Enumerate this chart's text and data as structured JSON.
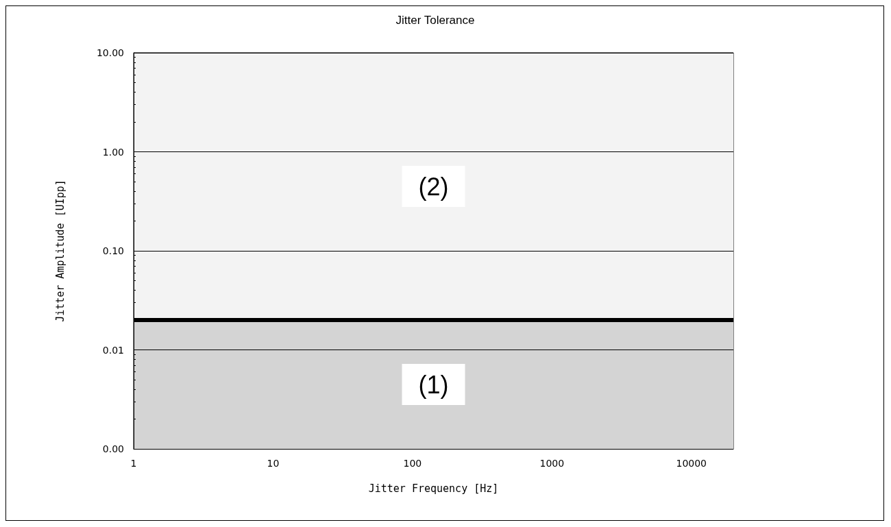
{
  "chart_data": {
    "type": "line",
    "title": "Jitter Tolerance",
    "xlabel": "Jitter Frequency [Hz]",
    "ylabel": "Jitter Amplitude [UIpp]",
    "x": [
      1,
      20000
    ],
    "series": [
      {
        "color": "#000000",
        "values": [
          0.02,
          0.02
        ]
      }
    ],
    "xlim": [
      1,
      20000
    ],
    "ylim": [
      0.001,
      10
    ],
    "xticks": [
      1,
      10,
      100,
      1000,
      10000
    ],
    "yticks": [
      {
        "value": 0.001,
        "label": "0.00"
      },
      {
        "value": 0.01,
        "label": "0.01"
      },
      {
        "value": 0.1,
        "label": "0.10"
      },
      {
        "value": 1,
        "label": "1.00"
      },
      {
        "value": 10,
        "label": "10.00"
      }
    ],
    "log": "xy",
    "grid": "y",
    "marker": "none",
    "line_style": "solid",
    "bands": [
      {
        "axis": "y",
        "from": 0.001,
        "to": 0.02,
        "label": "(1)",
        "color": "#d4d4d4"
      },
      {
        "axis": "y",
        "from": 0.02,
        "to": 10,
        "label": "(2)",
        "color": "#f3f3f3"
      }
    ]
  }
}
